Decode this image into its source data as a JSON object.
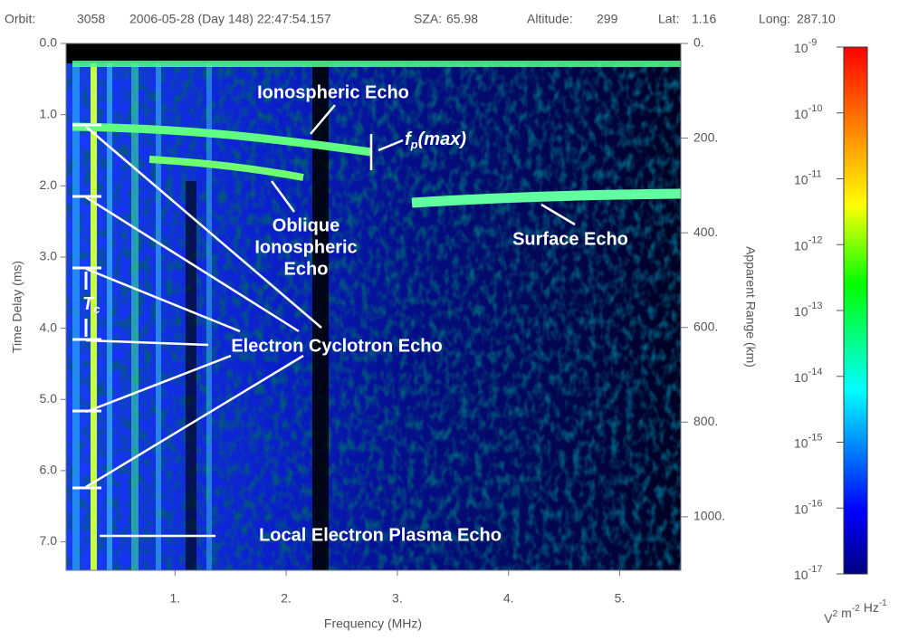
{
  "header": {
    "items": [
      {
        "label": "Orbit:",
        "value": "3058"
      },
      {
        "label": "",
        "value": "2006-05-28 (Day 148) 22:47:54.157"
      },
      {
        "label": "SZA:",
        "value": "65.98"
      },
      {
        "label": "Altitude:",
        "value": "299"
      },
      {
        "label": "Lat:",
        "value": "1.16"
      },
      {
        "label": "Long:",
        "value": "287.10"
      }
    ]
  },
  "chart_data": {
    "type": "heatmap",
    "xlabel": "Frequency (MHz)",
    "ylabel": "Time Delay (ms)",
    "y2label": "Apparent Range (km)",
    "xlim": [
      0.02,
      5.55
    ],
    "xticks": [
      {
        "value": 1,
        "label": "1."
      },
      {
        "value": 2,
        "label": "2."
      },
      {
        "value": 3,
        "label": "3."
      },
      {
        "value": 4,
        "label": "4."
      },
      {
        "value": 5,
        "label": "5."
      }
    ],
    "ylim": [
      0,
      7.4
    ],
    "yticks": [
      {
        "value": 0,
        "label": "0.0"
      },
      {
        "value": 1,
        "label": "1.0"
      },
      {
        "value": 2,
        "label": "2.0"
      },
      {
        "value": 3,
        "label": "3.0"
      },
      {
        "value": 4,
        "label": "4.0"
      },
      {
        "value": 5,
        "label": "5.0"
      },
      {
        "value": 6,
        "label": "6.0"
      },
      {
        "value": 7,
        "label": "7.0"
      }
    ],
    "y2lim": [
      0,
      1113
    ],
    "y2ticks": [
      {
        "value": 0,
        "label": "0."
      },
      {
        "value": 200,
        "label": "200."
      },
      {
        "value": 400,
        "label": "400."
      },
      {
        "value": 600,
        "label": "600."
      },
      {
        "value": 800,
        "label": "800."
      },
      {
        "value": 1000,
        "label": "1000."
      }
    ],
    "colorbar": {
      "log": true,
      "lim": [
        1e-17,
        1e-09
      ],
      "ticks": [
        {
          "value": 1e-09,
          "base": "10",
          "exponent": "-9"
        },
        {
          "value": 1e-10,
          "base": "10",
          "exponent": "-10"
        },
        {
          "value": 1e-11,
          "base": "10",
          "exponent": "-11"
        },
        {
          "value": 1e-12,
          "base": "10",
          "exponent": "-12"
        },
        {
          "value": 1e-13,
          "base": "10",
          "exponent": "-13"
        },
        {
          "value": 1e-14,
          "base": "10",
          "exponent": "-14"
        },
        {
          "value": 1e-15,
          "base": "10",
          "exponent": "-15"
        },
        {
          "value": 1e-16,
          "base": "10",
          "exponent": "-16"
        },
        {
          "value": 1e-17,
          "base": "10",
          "exponent": "-17"
        }
      ],
      "units": [
        {
          "base": "V",
          "exponent": "2"
        },
        {
          "base": "m",
          "exponent": "-2"
        },
        {
          "base": "Hz",
          "exponent": "-1"
        }
      ]
    },
    "annotations": {
      "ionospheric": "Ionospheric Echo",
      "fp_f": "f",
      "fp_sub": "p",
      "fp_max": "(max)",
      "oblique": [
        "Oblique",
        "Ionospheric",
        "Echo"
      ],
      "surface": "Surface Echo",
      "cyclotron": "Electron Cyclotron Echo",
      "plasma": "Local Electron Plasma Echo",
      "tc_t": "T",
      "tc_sub": "c"
    }
  }
}
